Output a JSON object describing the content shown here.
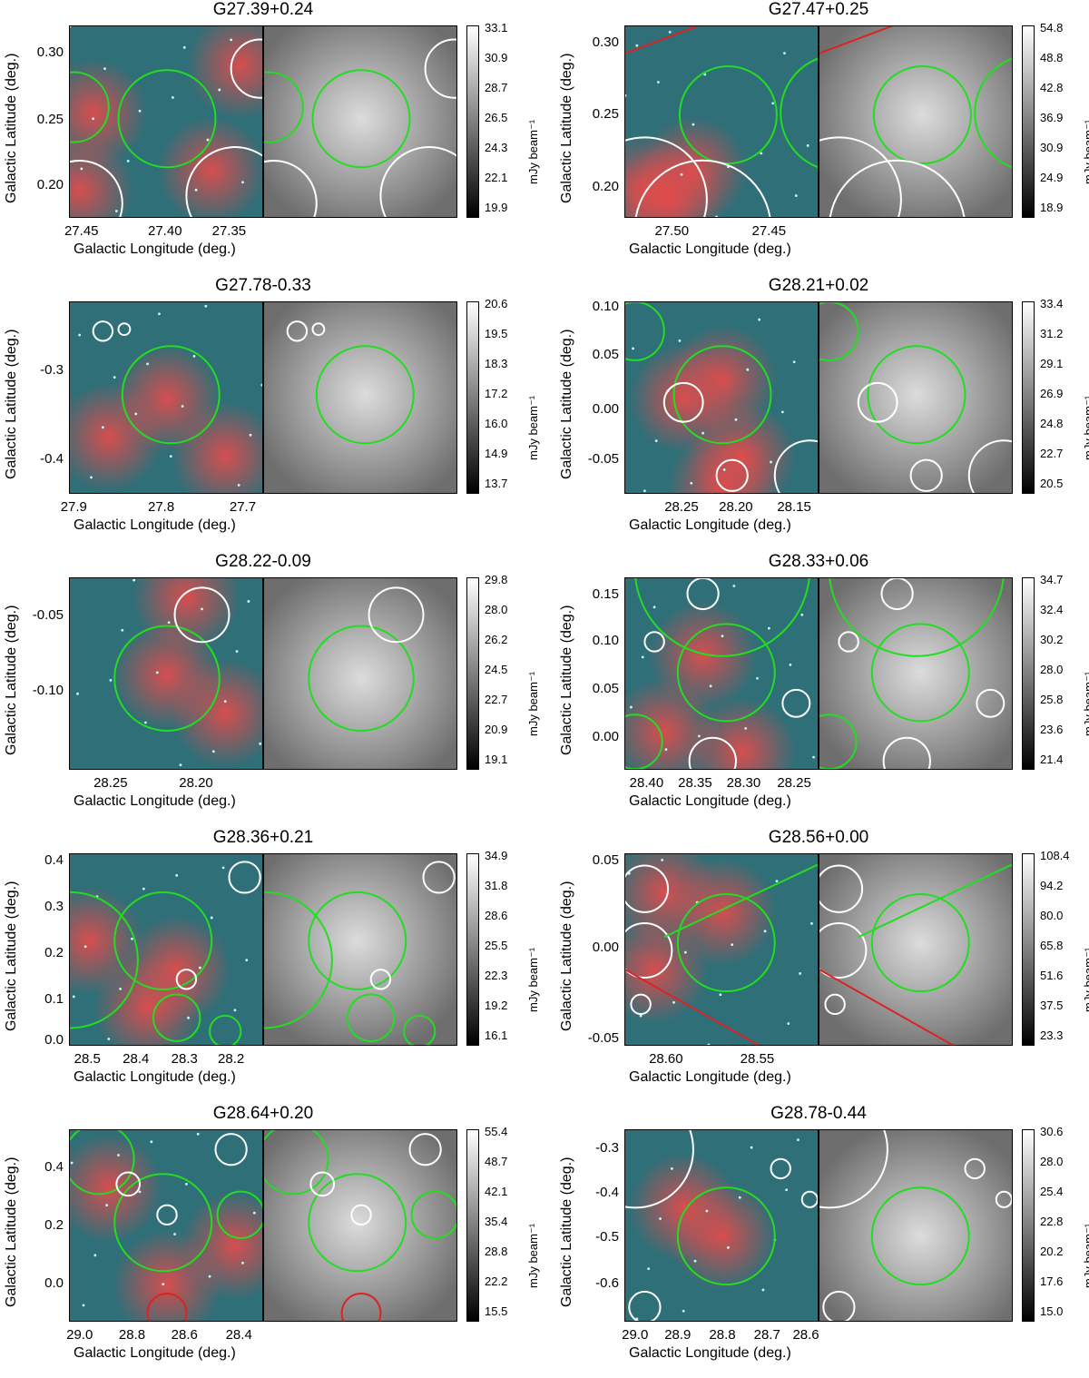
{
  "axis_labels": {
    "y": "Galactic Latitude (deg.)",
    "x": "Galactic Longitude (deg.)",
    "colorbar_unit": "mJy beam⁻¹"
  },
  "panels": [
    {
      "title": "G27.39+0.24",
      "x_ticks": [
        "27.45",
        "27.40",
        "27.35"
      ],
      "y_ticks": [
        "0.30",
        "0.25",
        "0.20"
      ],
      "cbar": [
        "33.1",
        "30.9",
        "28.7",
        "26.5",
        "24.3",
        "22.1",
        "19.9"
      ]
    },
    {
      "title": "G27.47+0.25",
      "x_ticks": [
        "27.50",
        "27.45"
      ],
      "y_ticks": [
        "0.30",
        "0.25",
        "0.20"
      ],
      "cbar": [
        "54.8",
        "48.8",
        "42.8",
        "36.9",
        "30.9",
        "24.9",
        "18.9"
      ]
    },
    {
      "title": "G27.78-0.33",
      "x_ticks": [
        "27.9",
        "27.8",
        "27.7"
      ],
      "y_ticks": [
        "-0.3",
        "-0.4"
      ],
      "cbar": [
        "20.6",
        "19.5",
        "18.3",
        "17.2",
        "16.0",
        "14.9",
        "13.7"
      ]
    },
    {
      "title": "G28.21+0.02",
      "x_ticks": [
        "28.25",
        "28.20",
        "28.15"
      ],
      "y_ticks": [
        "0.10",
        "0.05",
        "0.00",
        "-0.05"
      ],
      "cbar": [
        "33.4",
        "31.2",
        "29.1",
        "26.9",
        "24.8",
        "22.7",
        "20.5"
      ]
    },
    {
      "title": "G28.22-0.09",
      "x_ticks": [
        "28.25",
        "28.20"
      ],
      "y_ticks": [
        "-0.05",
        "-0.10"
      ],
      "cbar": [
        "29.8",
        "28.0",
        "26.2",
        "24.5",
        "22.7",
        "20.9",
        "19.1"
      ]
    },
    {
      "title": "G28.33+0.06",
      "x_ticks": [
        "28.40",
        "28.35",
        "28.30",
        "28.25"
      ],
      "y_ticks": [
        "0.15",
        "0.10",
        "0.05",
        "0.00"
      ],
      "cbar": [
        "34.7",
        "32.4",
        "30.2",
        "28.0",
        "25.8",
        "23.6",
        "21.4"
      ]
    },
    {
      "title": "G28.36+0.21",
      "x_ticks": [
        "28.5",
        "28.4",
        "28.3",
        "28.2"
      ],
      "y_ticks": [
        "0.4",
        "0.3",
        "0.2",
        "0.1",
        "0.0"
      ],
      "cbar": [
        "34.9",
        "31.8",
        "28.6",
        "25.5",
        "22.3",
        "19.2",
        "16.1"
      ]
    },
    {
      "title": "G28.56+0.00",
      "x_ticks": [
        "28.60",
        "28.55"
      ],
      "y_ticks": [
        "0.05",
        "0.00",
        "-0.05"
      ],
      "cbar": [
        "108.4",
        "94.2",
        "80.0",
        "65.8",
        "51.6",
        "37.5",
        "23.3"
      ]
    },
    {
      "title": "G28.64+0.20",
      "x_ticks": [
        "29.0",
        "28.8",
        "28.6",
        "28.4"
      ],
      "y_ticks": [
        "0.4",
        "0.2",
        "0.0"
      ],
      "cbar": [
        "55.4",
        "48.7",
        "42.1",
        "35.4",
        "28.8",
        "22.2",
        "15.5"
      ]
    },
    {
      "title": "G28.78-0.44",
      "x_ticks": [
        "29.0",
        "28.9",
        "28.8",
        "28.7",
        "28.6"
      ],
      "y_ticks": [
        "-0.3",
        "-0.4",
        "-0.5",
        "-0.6"
      ],
      "cbar": [
        "30.6",
        "28.0",
        "25.4",
        "22.8",
        "20.2",
        "17.6",
        "15.0"
      ]
    }
  ]
}
